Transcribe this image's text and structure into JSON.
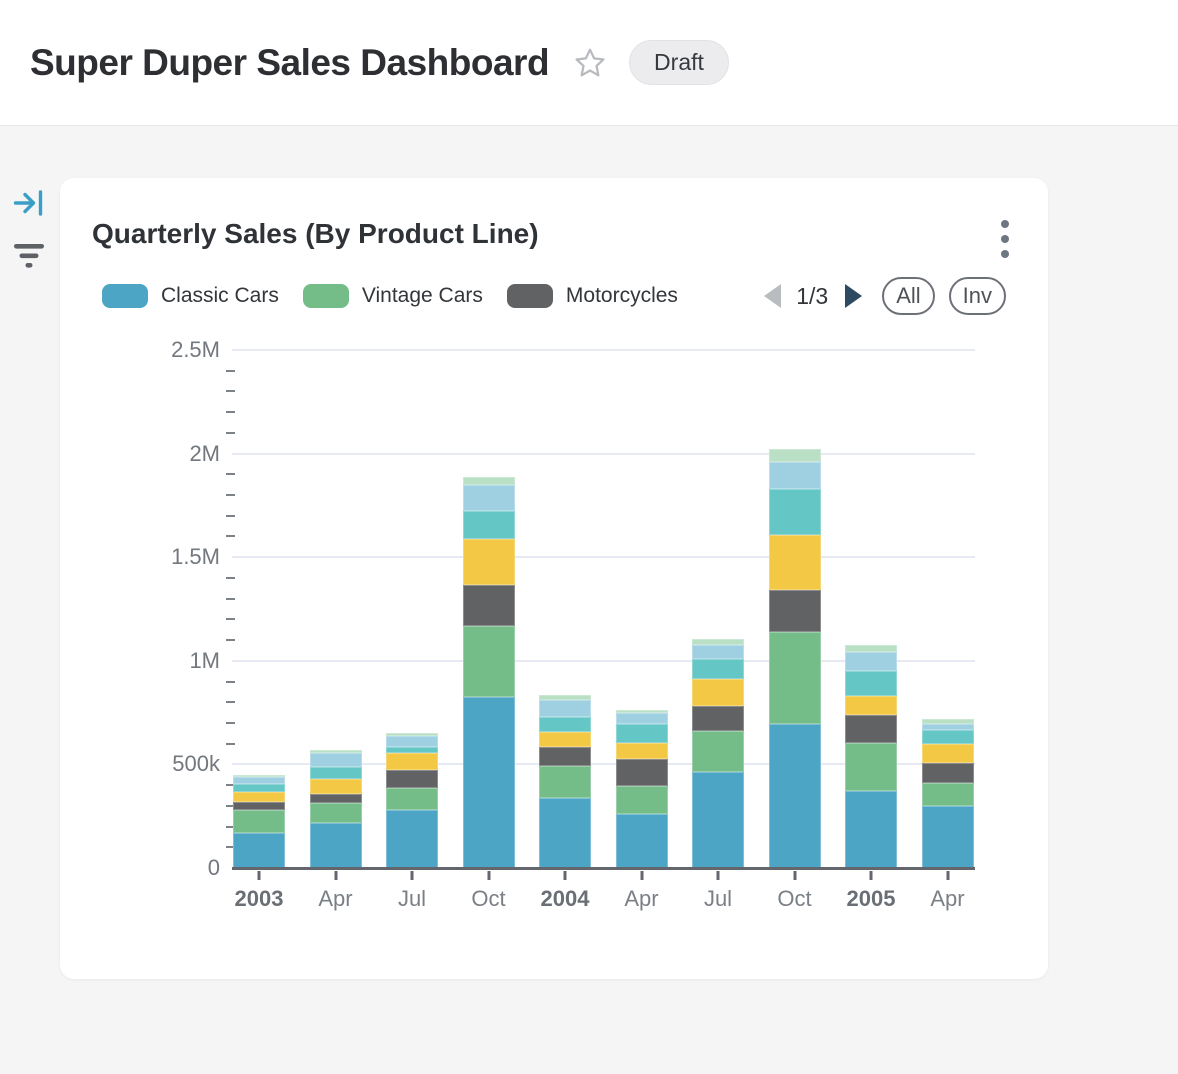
{
  "header": {
    "title": "Super Duper Sales Dashboard",
    "badge": "Draft"
  },
  "icons": {
    "star": "outline-star",
    "collapse_panel": "arrow-to-bar",
    "filter": "funnel-lines",
    "menu": "vertical-ellipsis",
    "pager_prev": "left-triangle",
    "pager_next": "right-triangle"
  },
  "card": {
    "title": "Quarterly Sales (By Product Line)",
    "legend": {
      "visible_items": [
        {
          "label": "Classic Cars",
          "color": "#4da5c6"
        },
        {
          "label": "Vintage Cars",
          "color": "#74bd89"
        },
        {
          "label": "Motorcycles",
          "color": "#616264"
        }
      ],
      "pagination": {
        "current_page": 1,
        "total_pages": 3,
        "display": "1/3"
      },
      "buttons": [
        {
          "label": "All"
        },
        {
          "label": "Inv"
        }
      ]
    }
  },
  "chart_data": {
    "type": "bar",
    "stacked": true,
    "title": "Quarterly Sales (By Product Line)",
    "values_in": "thousands",
    "categories": [
      "2003",
      "Apr",
      "Jul",
      "Oct",
      "2004",
      "Apr",
      "Jul",
      "Oct",
      "2005",
      "Apr"
    ],
    "category_styles": [
      "year",
      "month",
      "month",
      "month",
      "year",
      "month",
      "month",
      "month",
      "year",
      "month"
    ],
    "series": [
      {
        "name": "Classic Cars",
        "color": "#4da5c6",
        "values": [
          169,
          217,
          279,
          826,
          337,
          261,
          465,
          697,
          371,
          299
        ]
      },
      {
        "name": "Vintage Cars",
        "color": "#74bd89",
        "values": [
          111,
          97,
          105,
          343,
          157,
          135,
          196,
          440,
          234,
          113
        ]
      },
      {
        "name": "Motorcycles",
        "color": "#616264",
        "values": [
          39,
          43,
          89,
          199,
          88,
          128,
          121,
          205,
          134,
          96
        ]
      },
      {
        "name": "unlabeled-yellow (legend page 2)",
        "color": "#f3c845",
        "values": [
          50,
          74,
          83,
          222,
          75,
          80,
          129,
          266,
          89,
          90
        ]
      },
      {
        "name": "unlabeled-teal (legend page 2)",
        "color": "#64c7c5",
        "values": [
          37,
          59,
          28,
          131,
          72,
          93,
          97,
          221,
          125,
          68
        ]
      },
      {
        "name": "unlabeled-light-blue (legend page 2)",
        "color": "#9fd0e2",
        "values": [
          34,
          65,
          53,
          127,
          80,
          51,
          69,
          129,
          92,
          28
        ]
      },
      {
        "name": "unlabeled-mint (legend page 3)",
        "color": "#b9dfc5",
        "values": [
          10,
          13,
          16,
          40,
          27,
          16,
          28,
          66,
          32,
          25
        ]
      }
    ],
    "totals": [
      450,
      568,
      653,
      1888,
      836,
      764,
      1105,
      2024,
      1077,
      719
    ],
    "ylim": [
      0,
      2500
    ],
    "y_ticks": [
      {
        "value": 0,
        "label": "0"
      },
      {
        "value": 500,
        "label": "500k"
      },
      {
        "value": 1000,
        "label": "1M"
      },
      {
        "value": 1500,
        "label": "1.5M"
      },
      {
        "value": 2000,
        "label": "2M"
      },
      {
        "value": 2500,
        "label": "2.5M"
      }
    ],
    "minor_tick_interval": 100,
    "grid": true,
    "legend_position": "top"
  }
}
